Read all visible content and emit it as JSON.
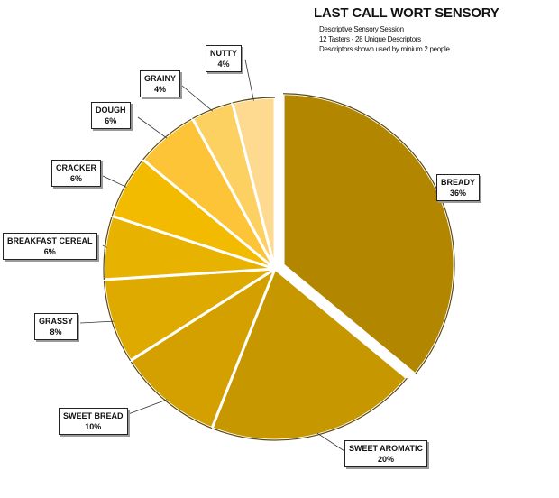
{
  "chart_data": {
    "type": "pie",
    "title": "LAST CALL WORT SENSORY",
    "subtitle_lines": [
      "Descriptive Sensory Session",
      "12 Tasters - 28 Unique Descriptors",
      "Descriptors shown used by minium 2 people"
    ],
    "slices": [
      {
        "label": "BREADY",
        "value": 36,
        "pct": "36%",
        "color": "#b38600",
        "exploded": true
      },
      {
        "label": "SWEET AROMATIC",
        "value": 20,
        "pct": "20%",
        "color": "#c79700"
      },
      {
        "label": "SWEET BREAD",
        "value": 10,
        "pct": "10%",
        "color": "#d4a000"
      },
      {
        "label": "GRASSY",
        "value": 8,
        "pct": "8%",
        "color": "#dfaa00"
      },
      {
        "label": "BREAKFAST CEREAL",
        "value": 6,
        "pct": "6%",
        "color": "#e8b200"
      },
      {
        "label": "CRACKER",
        "value": 6,
        "pct": "6%",
        "color": "#f3bb00"
      },
      {
        "label": "DOUGH",
        "value": 6,
        "pct": "6%",
        "color": "#fcc436"
      },
      {
        "label": "GRAINY",
        "value": 4,
        "pct": "4%",
        "color": "#fdd062"
      },
      {
        "label": "NUTTY",
        "value": 4,
        "pct": "4%",
        "color": "#fed990"
      }
    ]
  }
}
